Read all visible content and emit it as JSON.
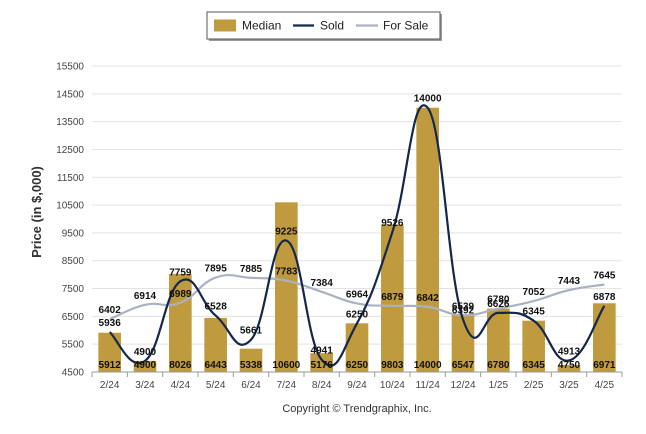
{
  "chart_data": {
    "type": "bar",
    "categories": [
      "2/24",
      "3/24",
      "4/24",
      "5/24",
      "6/24",
      "7/24",
      "8/24",
      "9/24",
      "10/24",
      "11/24",
      "12/24",
      "1/25",
      "2/25",
      "3/25",
      "4/25"
    ],
    "ylabel": "Price (in $,000)",
    "ylim": [
      4500,
      15500
    ],
    "yticks": [
      4500,
      5500,
      6500,
      7500,
      8500,
      9500,
      10500,
      11500,
      12500,
      13500,
      14500,
      15500
    ],
    "grid": true,
    "legend_position": "top-center",
    "series": [
      {
        "name": "Median",
        "kind": "bar",
        "color": "#c09a3e",
        "values": [
          5912,
          4900,
          8026,
          6443,
          5338,
          10600,
          5176,
          6250,
          9803,
          14000,
          6547,
          6780,
          6345,
          4750,
          6971
        ]
      },
      {
        "name": "Sold",
        "kind": "line",
        "color": "#14284b",
        "values": [
          5936,
          4900,
          7759,
          6528,
          5661,
          9225,
          4941,
          6250,
          9526,
          14000,
          6392,
          6626,
          6345,
          4913,
          6878
        ]
      },
      {
        "name": "For Sale",
        "kind": "line",
        "color": "#aab2c2",
        "values": [
          6402,
          6914,
          6989,
          7895,
          7885,
          7783,
          7384,
          6964,
          6879,
          6842,
          6539,
          6780,
          7052,
          7443,
          7645
        ]
      }
    ],
    "labels": {
      "bar_bottom": [
        "5912",
        "4900",
        "8026",
        "6443",
        "5338",
        "10600",
        "5176",
        "6250",
        "9803",
        "14000",
        "6547",
        "6780",
        "6345",
        "4750",
        "6971"
      ],
      "sold": [
        "5936",
        "4900",
        "7759",
        "6528",
        "5661",
        "9225",
        "4941",
        "6250",
        "9526",
        "14000",
        "6392",
        "6626",
        "6345",
        "4913",
        "6878"
      ],
      "for_sale": [
        "6402",
        "6914",
        "6989",
        "7895",
        "7885",
        "7783",
        "7384",
        "6964",
        "6879",
        "6842",
        "6539",
        "6780",
        "7052",
        "7443",
        "7645"
      ]
    }
  },
  "footer": {
    "copyright": "Copyright © Trendgraphix, Inc."
  }
}
